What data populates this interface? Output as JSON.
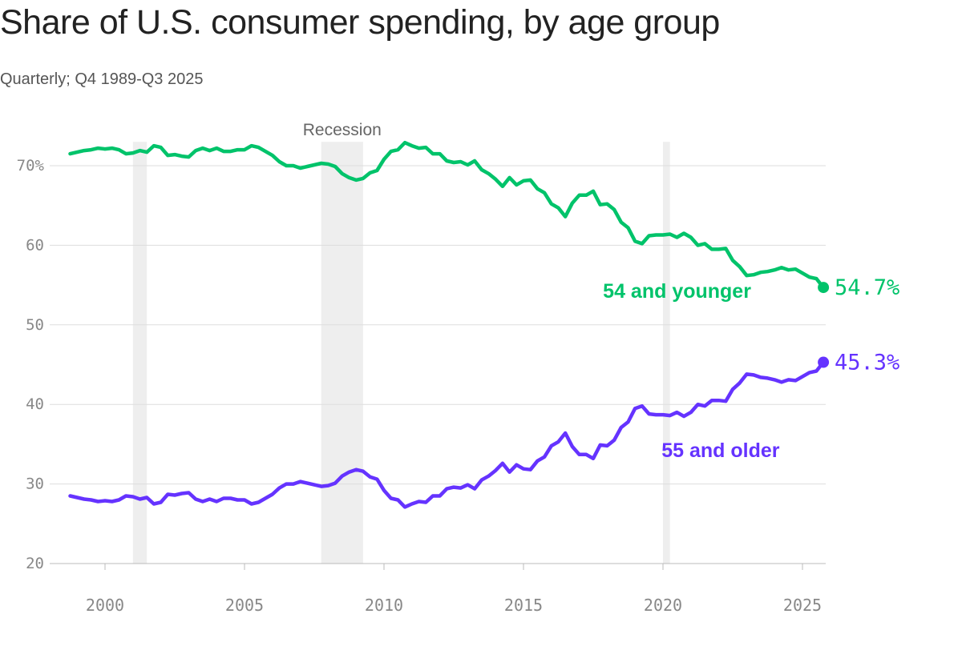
{
  "title": "Share of U.S. consumer spending, by age group",
  "subtitle": "Quarterly; Q4 1989-Q3 2025",
  "chart_data": {
    "type": "line",
    "x_ticks": [
      2000,
      2005,
      2010,
      2015,
      2020,
      2025
    ],
    "y_ticks": [
      20,
      30,
      40,
      50,
      60,
      70
    ],
    "y_tick_labels": [
      "20",
      "30",
      "40",
      "50",
      "60",
      "70%"
    ],
    "ylim": [
      20,
      73
    ],
    "xlim": [
      1998,
      2026
    ],
    "grid": true,
    "recession_label": "Recession",
    "recessions": [
      [
        2001.0,
        2001.5
      ],
      [
        2007.75,
        2009.25
      ],
      [
        2020.0,
        2020.25
      ]
    ],
    "series": [
      {
        "name": "54 and younger",
        "color": "#00c36a",
        "end_label": "54.7%",
        "points": [
          [
            1998.75,
            71.5
          ],
          [
            1999.0,
            71.7
          ],
          [
            1999.25,
            71.9
          ],
          [
            1999.5,
            72.0
          ],
          [
            1999.75,
            72.2
          ],
          [
            2000.0,
            72.1
          ],
          [
            2000.25,
            72.2
          ],
          [
            2000.5,
            72.0
          ],
          [
            2000.75,
            71.5
          ],
          [
            2001.0,
            71.6
          ],
          [
            2001.25,
            71.9
          ],
          [
            2001.5,
            71.7
          ],
          [
            2001.75,
            72.5
          ],
          [
            2002.0,
            72.3
          ],
          [
            2002.25,
            71.3
          ],
          [
            2002.5,
            71.4
          ],
          [
            2002.75,
            71.2
          ],
          [
            2003.0,
            71.1
          ],
          [
            2003.25,
            71.9
          ],
          [
            2003.5,
            72.2
          ],
          [
            2003.75,
            71.9
          ],
          [
            2004.0,
            72.2
          ],
          [
            2004.25,
            71.8
          ],
          [
            2004.5,
            71.8
          ],
          [
            2004.75,
            72.0
          ],
          [
            2005.0,
            72.0
          ],
          [
            2005.25,
            72.5
          ],
          [
            2005.5,
            72.3
          ],
          [
            2005.75,
            71.8
          ],
          [
            2006.0,
            71.3
          ],
          [
            2006.25,
            70.5
          ],
          [
            2006.5,
            70.0
          ],
          [
            2006.75,
            70.0
          ],
          [
            2007.0,
            69.7
          ],
          [
            2007.25,
            69.9
          ],
          [
            2007.5,
            70.1
          ],
          [
            2007.75,
            70.3
          ],
          [
            2008.0,
            70.2
          ],
          [
            2008.25,
            69.9
          ],
          [
            2008.5,
            69.0
          ],
          [
            2008.75,
            68.5
          ],
          [
            2009.0,
            68.2
          ],
          [
            2009.25,
            68.4
          ],
          [
            2009.5,
            69.1
          ],
          [
            2009.75,
            69.4
          ],
          [
            2010.0,
            70.8
          ],
          [
            2010.25,
            71.8
          ],
          [
            2010.5,
            72.0
          ],
          [
            2010.75,
            72.9
          ],
          [
            2011.0,
            72.5
          ],
          [
            2011.25,
            72.2
          ],
          [
            2011.5,
            72.3
          ],
          [
            2011.75,
            71.5
          ],
          [
            2012.0,
            71.5
          ],
          [
            2012.25,
            70.6
          ],
          [
            2012.5,
            70.4
          ],
          [
            2012.75,
            70.5
          ],
          [
            2013.0,
            70.1
          ],
          [
            2013.25,
            70.6
          ],
          [
            2013.5,
            69.5
          ],
          [
            2013.75,
            69.0
          ],
          [
            2014.0,
            68.3
          ],
          [
            2014.25,
            67.4
          ],
          [
            2014.5,
            68.5
          ],
          [
            2014.75,
            67.6
          ],
          [
            2015.0,
            68.1
          ],
          [
            2015.25,
            68.2
          ],
          [
            2015.5,
            67.1
          ],
          [
            2015.75,
            66.6
          ],
          [
            2016.0,
            65.2
          ],
          [
            2016.25,
            64.7
          ],
          [
            2016.5,
            63.6
          ],
          [
            2016.75,
            65.3
          ],
          [
            2017.0,
            66.3
          ],
          [
            2017.25,
            66.3
          ],
          [
            2017.5,
            66.8
          ],
          [
            2017.75,
            65.1
          ],
          [
            2018.0,
            65.2
          ],
          [
            2018.25,
            64.5
          ],
          [
            2018.5,
            62.9
          ],
          [
            2018.75,
            62.2
          ],
          [
            2019.0,
            60.5
          ],
          [
            2019.25,
            60.2
          ],
          [
            2019.5,
            61.2
          ],
          [
            2019.75,
            61.3
          ],
          [
            2020.0,
            61.3
          ],
          [
            2020.25,
            61.4
          ],
          [
            2020.5,
            61.0
          ],
          [
            2020.75,
            61.5
          ],
          [
            2021.0,
            61.0
          ],
          [
            2021.25,
            60.0
          ],
          [
            2021.5,
            60.2
          ],
          [
            2021.75,
            59.5
          ],
          [
            2022.0,
            59.5
          ],
          [
            2022.25,
            59.6
          ],
          [
            2022.5,
            58.1
          ],
          [
            2022.75,
            57.3
          ],
          [
            2023.0,
            56.2
          ],
          [
            2023.25,
            56.3
          ],
          [
            2023.5,
            56.6
          ],
          [
            2023.75,
            56.7
          ],
          [
            2024.0,
            56.9
          ],
          [
            2024.25,
            57.2
          ],
          [
            2024.5,
            56.9
          ],
          [
            2024.75,
            57.0
          ],
          [
            2025.0,
            56.5
          ],
          [
            2025.25,
            56.0
          ],
          [
            2025.5,
            55.8
          ],
          [
            2025.75,
            54.7
          ]
        ]
      },
      {
        "name": "55 and older",
        "color": "#6533ff",
        "end_label": "45.3%",
        "points": [
          [
            1998.75,
            28.5
          ],
          [
            1999.0,
            28.3
          ],
          [
            1999.25,
            28.1
          ],
          [
            1999.5,
            28.0
          ],
          [
            1999.75,
            27.8
          ],
          [
            2000.0,
            27.9
          ],
          [
            2000.25,
            27.8
          ],
          [
            2000.5,
            28.0
          ],
          [
            2000.75,
            28.5
          ],
          [
            2001.0,
            28.4
          ],
          [
            2001.25,
            28.1
          ],
          [
            2001.5,
            28.3
          ],
          [
            2001.75,
            27.5
          ],
          [
            2002.0,
            27.7
          ],
          [
            2002.25,
            28.7
          ],
          [
            2002.5,
            28.6
          ],
          [
            2002.75,
            28.8
          ],
          [
            2003.0,
            28.9
          ],
          [
            2003.25,
            28.1
          ],
          [
            2003.5,
            27.8
          ],
          [
            2003.75,
            28.1
          ],
          [
            2004.0,
            27.8
          ],
          [
            2004.25,
            28.2
          ],
          [
            2004.5,
            28.2
          ],
          [
            2004.75,
            28.0
          ],
          [
            2005.0,
            28.0
          ],
          [
            2005.25,
            27.5
          ],
          [
            2005.5,
            27.7
          ],
          [
            2005.75,
            28.2
          ],
          [
            2006.0,
            28.7
          ],
          [
            2006.25,
            29.5
          ],
          [
            2006.5,
            30.0
          ],
          [
            2006.75,
            30.0
          ],
          [
            2007.0,
            30.3
          ],
          [
            2007.25,
            30.1
          ],
          [
            2007.5,
            29.9
          ],
          [
            2007.75,
            29.7
          ],
          [
            2008.0,
            29.8
          ],
          [
            2008.25,
            30.1
          ],
          [
            2008.5,
            31.0
          ],
          [
            2008.75,
            31.5
          ],
          [
            2009.0,
            31.8
          ],
          [
            2009.25,
            31.6
          ],
          [
            2009.5,
            30.9
          ],
          [
            2009.75,
            30.6
          ],
          [
            2010.0,
            29.2
          ],
          [
            2010.25,
            28.2
          ],
          [
            2010.5,
            28.0
          ],
          [
            2010.75,
            27.1
          ],
          [
            2011.0,
            27.5
          ],
          [
            2011.25,
            27.8
          ],
          [
            2011.5,
            27.7
          ],
          [
            2011.75,
            28.5
          ],
          [
            2012.0,
            28.5
          ],
          [
            2012.25,
            29.4
          ],
          [
            2012.5,
            29.6
          ],
          [
            2012.75,
            29.5
          ],
          [
            2013.0,
            29.9
          ],
          [
            2013.25,
            29.4
          ],
          [
            2013.5,
            30.5
          ],
          [
            2013.75,
            31.0
          ],
          [
            2014.0,
            31.7
          ],
          [
            2014.25,
            32.6
          ],
          [
            2014.5,
            31.5
          ],
          [
            2014.75,
            32.4
          ],
          [
            2015.0,
            31.9
          ],
          [
            2015.25,
            31.8
          ],
          [
            2015.5,
            32.9
          ],
          [
            2015.75,
            33.4
          ],
          [
            2016.0,
            34.8
          ],
          [
            2016.25,
            35.3
          ],
          [
            2016.5,
            36.4
          ],
          [
            2016.75,
            34.7
          ],
          [
            2017.0,
            33.7
          ],
          [
            2017.25,
            33.7
          ],
          [
            2017.5,
            33.2
          ],
          [
            2017.75,
            34.9
          ],
          [
            2018.0,
            34.8
          ],
          [
            2018.25,
            35.5
          ],
          [
            2018.5,
            37.1
          ],
          [
            2018.75,
            37.8
          ],
          [
            2019.0,
            39.5
          ],
          [
            2019.25,
            39.8
          ],
          [
            2019.5,
            38.8
          ],
          [
            2019.75,
            38.7
          ],
          [
            2020.0,
            38.7
          ],
          [
            2020.25,
            38.6
          ],
          [
            2020.5,
            39.0
          ],
          [
            2020.75,
            38.5
          ],
          [
            2021.0,
            39.0
          ],
          [
            2021.25,
            40.0
          ],
          [
            2021.5,
            39.8
          ],
          [
            2021.75,
            40.5
          ],
          [
            2022.0,
            40.5
          ],
          [
            2022.25,
            40.4
          ],
          [
            2022.5,
            41.9
          ],
          [
            2022.75,
            42.7
          ],
          [
            2023.0,
            43.8
          ],
          [
            2023.25,
            43.7
          ],
          [
            2023.5,
            43.4
          ],
          [
            2023.75,
            43.3
          ],
          [
            2024.0,
            43.1
          ],
          [
            2024.25,
            42.8
          ],
          [
            2024.5,
            43.1
          ],
          [
            2024.75,
            43.0
          ],
          [
            2025.0,
            43.5
          ],
          [
            2025.25,
            44.0
          ],
          [
            2025.5,
            44.2
          ],
          [
            2025.75,
            45.3
          ]
        ]
      }
    ]
  }
}
